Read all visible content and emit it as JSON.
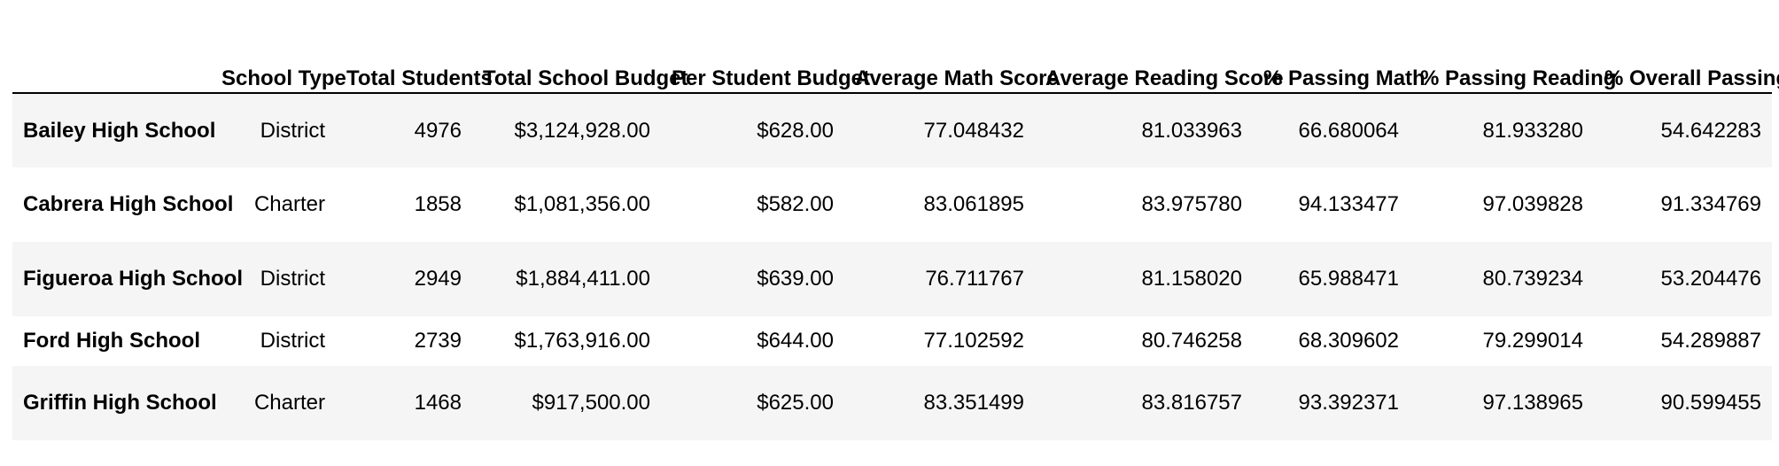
{
  "table": {
    "columns": [
      "",
      "School Type",
      "Total Students",
      "Total School Budget",
      "Per Student Budget",
      "Average Math Score",
      "Average Reading Score",
      "% Passing Math",
      "% Passing Reading",
      "% Overall Passing"
    ],
    "rows": [
      {
        "school": "Bailey High School",
        "type": "District",
        "students": "4976",
        "budget": "$3,124,928.00",
        "per_student": "$628.00",
        "avg_math": "77.048432",
        "avg_reading": "81.033963",
        "pct_math": "66.680064",
        "pct_reading": "81.933280",
        "pct_overall": "54.642283"
      },
      {
        "school": "Cabrera High School",
        "type": "Charter",
        "students": "1858",
        "budget": "$1,081,356.00",
        "per_student": "$582.00",
        "avg_math": "83.061895",
        "avg_reading": "83.975780",
        "pct_math": "94.133477",
        "pct_reading": "97.039828",
        "pct_overall": "91.334769"
      },
      {
        "school": "Figueroa High School",
        "type": "District",
        "students": "2949",
        "budget": "$1,884,411.00",
        "per_student": "$639.00",
        "avg_math": "76.711767",
        "avg_reading": "81.158020",
        "pct_math": "65.988471",
        "pct_reading": "80.739234",
        "pct_overall": "53.204476"
      },
      {
        "school": "Ford High School",
        "type": "District",
        "students": "2739",
        "budget": "$1,763,916.00",
        "per_student": "$644.00",
        "avg_math": "77.102592",
        "avg_reading": "80.746258",
        "pct_math": "68.309602",
        "pct_reading": "79.299014",
        "pct_overall": "54.289887"
      },
      {
        "school": "Griffin High School",
        "type": "Charter",
        "students": "1468",
        "budget": "$917,500.00",
        "per_student": "$625.00",
        "avg_math": "83.351499",
        "avg_reading": "83.816757",
        "pct_math": "93.392371",
        "pct_reading": "97.138965",
        "pct_overall": "90.599455"
      }
    ]
  }
}
